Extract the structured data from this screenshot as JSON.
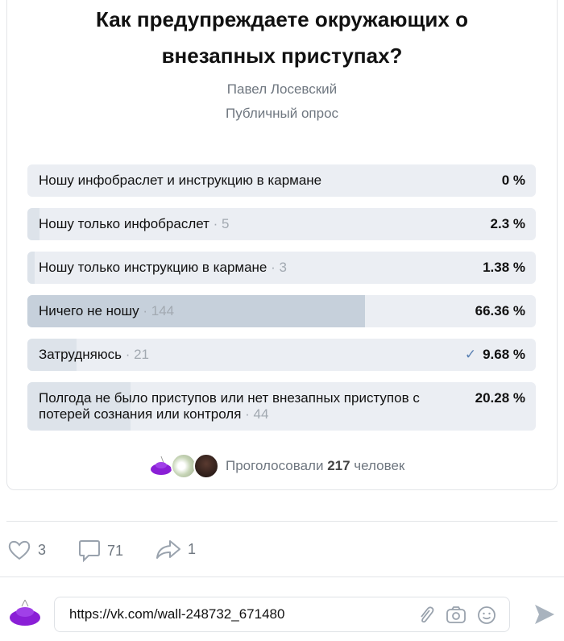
{
  "poll": {
    "title_line1": "Как предупреждаете окружающих о",
    "title_line2": "внезапных приступах?",
    "author": "Павел Лосевский",
    "type": "Публичный опрос",
    "options": [
      {
        "label": "Ношу инфобраслет и инструкцию в кармане",
        "count": "",
        "percent": "0 %",
        "value": 0
      },
      {
        "label": "Ношу только инфобраслет",
        "count": " · 5",
        "percent": "2.3 %",
        "value": 2.3
      },
      {
        "label": "Ношу только инструкцию в кармане",
        "count": " · 3",
        "percent": "1.38 %",
        "value": 1.38
      },
      {
        "label": "Ничего не ношу",
        "count": " · 144",
        "percent": "66.36 %",
        "value": 66.36
      },
      {
        "label": "Затрудняюсь",
        "count": " · 21",
        "percent": "9.68 %",
        "value": 9.68,
        "selected": true
      },
      {
        "label": "Полгода не было приступов или нет внезапных приступов с потерей сознания или контроля",
        "count": " · 44",
        "percent": "20.28 %",
        "value": 20.28
      }
    ],
    "voters_prefix": "Проголосовали ",
    "voters_count": "217",
    "voters_suffix": " человек"
  },
  "actions": {
    "likes": "3",
    "comments": "71",
    "shares": "1"
  },
  "comment": {
    "value": "https://vk.com/wall-248732_671480"
  },
  "colors": {
    "accent": "#5a81b3",
    "avatar": "#8a1fd6"
  }
}
